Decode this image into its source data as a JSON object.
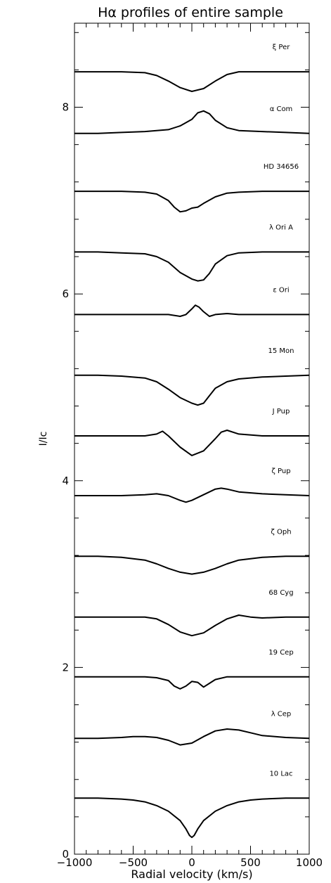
{
  "chart_data": {
    "type": "line",
    "title": "Hα profiles of entire sample",
    "xlabel": "Radial velocity (km/s)",
    "ylabel": "I/Ic",
    "xlim": [
      -1000,
      1000
    ],
    "ylim": [
      0,
      8.9
    ],
    "x_ticks": [
      -1000,
      -500,
      0,
      500,
      1000
    ],
    "x_tick_labels": [
      "−1000",
      "−500",
      "0",
      "500",
      "1000"
    ],
    "y_ticks": [
      0,
      2,
      4,
      6,
      8
    ],
    "y_tick_labels": [
      "0",
      "2",
      "4",
      "6",
      "8"
    ],
    "grid": false,
    "line_color": "#000000",
    "series": [
      {
        "name": "ξ Per",
        "baseline": 8.38,
        "x": [
          -1000,
          -800,
          -600,
          -400,
          -300,
          -200,
          -100,
          0,
          100,
          200,
          300,
          400,
          600,
          800,
          1000
        ],
        "y": [
          8.38,
          8.38,
          8.38,
          8.37,
          8.34,
          8.28,
          8.21,
          8.17,
          8.2,
          8.28,
          8.35,
          8.38,
          8.38,
          8.38,
          8.38
        ]
      },
      {
        "name": "α Com",
        "baseline": 7.72,
        "x": [
          -1000,
          -800,
          -600,
          -400,
          -200,
          -100,
          0,
          50,
          100,
          150,
          200,
          300,
          400,
          600,
          800,
          1000
        ],
        "y": [
          7.72,
          7.72,
          7.73,
          7.74,
          7.76,
          7.8,
          7.87,
          7.94,
          7.96,
          7.93,
          7.86,
          7.78,
          7.75,
          7.74,
          7.73,
          7.72
        ]
      },
      {
        "name": "HD 34656",
        "baseline": 7.1,
        "x": [
          -1000,
          -800,
          -600,
          -400,
          -300,
          -200,
          -150,
          -100,
          -50,
          0,
          50,
          100,
          200,
          300,
          400,
          600,
          800,
          1000
        ],
        "y": [
          7.1,
          7.1,
          7.1,
          7.09,
          7.07,
          7.0,
          6.93,
          6.88,
          6.89,
          6.92,
          6.93,
          6.97,
          7.04,
          7.08,
          7.09,
          7.1,
          7.1,
          7.1
        ]
      },
      {
        "name": "λ Ori A",
        "baseline": 6.45,
        "x": [
          -1000,
          -800,
          -600,
          -400,
          -300,
          -200,
          -100,
          0,
          50,
          100,
          150,
          200,
          300,
          400,
          600,
          800,
          1000
        ],
        "y": [
          6.45,
          6.45,
          6.44,
          6.43,
          6.4,
          6.34,
          6.23,
          6.16,
          6.14,
          6.15,
          6.22,
          6.32,
          6.41,
          6.44,
          6.45,
          6.45,
          6.45
        ]
      },
      {
        "name": "ε Ori",
        "baseline": 5.78,
        "x": [
          -1000,
          -800,
          -600,
          -400,
          -200,
          -100,
          -50,
          0,
          30,
          60,
          100,
          150,
          200,
          300,
          400,
          600,
          800,
          1000
        ],
        "y": [
          5.78,
          5.78,
          5.78,
          5.78,
          5.78,
          5.76,
          5.78,
          5.84,
          5.88,
          5.86,
          5.81,
          5.76,
          5.78,
          5.79,
          5.78,
          5.78,
          5.78,
          5.78
        ]
      },
      {
        "name": "15 Mon",
        "baseline": 5.13,
        "x": [
          -1000,
          -800,
          -600,
          -400,
          -300,
          -200,
          -100,
          0,
          50,
          100,
          150,
          200,
          300,
          400,
          600,
          800,
          1000
        ],
        "y": [
          5.13,
          5.13,
          5.12,
          5.1,
          5.06,
          4.98,
          4.89,
          4.83,
          4.81,
          4.83,
          4.91,
          4.99,
          5.06,
          5.09,
          5.11,
          5.12,
          5.13
        ]
      },
      {
        "name": "J Pup",
        "baseline": 4.48,
        "x": [
          -1000,
          -800,
          -600,
          -400,
          -300,
          -250,
          -200,
          -100,
          0,
          100,
          200,
          250,
          300,
          400,
          600,
          800,
          1000
        ],
        "y": [
          4.48,
          4.48,
          4.48,
          4.48,
          4.5,
          4.53,
          4.48,
          4.36,
          4.27,
          4.32,
          4.45,
          4.52,
          4.54,
          4.5,
          4.48,
          4.48,
          4.48
        ]
      },
      {
        "name": "ζ Pup",
        "baseline": 3.84,
        "x": [
          -1000,
          -800,
          -600,
          -400,
          -300,
          -200,
          -100,
          -50,
          0,
          100,
          200,
          250,
          300,
          400,
          600,
          800,
          1000
        ],
        "y": [
          3.84,
          3.84,
          3.84,
          3.85,
          3.86,
          3.84,
          3.79,
          3.77,
          3.79,
          3.85,
          3.91,
          3.92,
          3.91,
          3.88,
          3.86,
          3.85,
          3.84
        ]
      },
      {
        "name": "ζ Oph",
        "baseline": 3.19,
        "x": [
          -1000,
          -800,
          -600,
          -400,
          -300,
          -200,
          -100,
          0,
          100,
          200,
          300,
          400,
          600,
          800,
          1000
        ],
        "y": [
          3.19,
          3.19,
          3.18,
          3.15,
          3.11,
          3.06,
          3.02,
          3.0,
          3.02,
          3.06,
          3.11,
          3.15,
          3.18,
          3.19,
          3.19
        ]
      },
      {
        "name": "68 Cyg",
        "baseline": 2.54,
        "x": [
          -1000,
          -800,
          -600,
          -400,
          -300,
          -200,
          -100,
          0,
          100,
          200,
          300,
          400,
          500,
          600,
          800,
          1000
        ],
        "y": [
          2.54,
          2.54,
          2.54,
          2.54,
          2.52,
          2.46,
          2.38,
          2.34,
          2.37,
          2.45,
          2.52,
          2.56,
          2.54,
          2.53,
          2.54,
          2.54
        ]
      },
      {
        "name": "19 Cep",
        "baseline": 1.9,
        "x": [
          -1000,
          -800,
          -600,
          -400,
          -300,
          -200,
          -150,
          -100,
          -50,
          0,
          50,
          100,
          150,
          200,
          300,
          400,
          600,
          800,
          1000
        ],
        "y": [
          1.9,
          1.9,
          1.9,
          1.9,
          1.89,
          1.86,
          1.8,
          1.77,
          1.8,
          1.85,
          1.84,
          1.79,
          1.83,
          1.87,
          1.9,
          1.9,
          1.9,
          1.9,
          1.9
        ]
      },
      {
        "name": "λ Cep",
        "baseline": 1.24,
        "x": [
          -1000,
          -800,
          -600,
          -500,
          -400,
          -300,
          -200,
          -100,
          0,
          100,
          200,
          300,
          400,
          500,
          600,
          800,
          1000
        ],
        "y": [
          1.24,
          1.24,
          1.25,
          1.26,
          1.26,
          1.25,
          1.22,
          1.17,
          1.19,
          1.26,
          1.32,
          1.34,
          1.33,
          1.3,
          1.27,
          1.25,
          1.24
        ]
      },
      {
        "name": "10 Lac",
        "baseline": 0.6,
        "x": [
          -1000,
          -800,
          -600,
          -500,
          -400,
          -300,
          -200,
          -100,
          -50,
          -20,
          0,
          20,
          50,
          100,
          200,
          300,
          400,
          500,
          600,
          800,
          1000
        ],
        "y": [
          0.6,
          0.6,
          0.59,
          0.58,
          0.56,
          0.52,
          0.46,
          0.36,
          0.27,
          0.2,
          0.18,
          0.2,
          0.27,
          0.36,
          0.46,
          0.52,
          0.56,
          0.58,
          0.59,
          0.6,
          0.6
        ]
      }
    ]
  }
}
